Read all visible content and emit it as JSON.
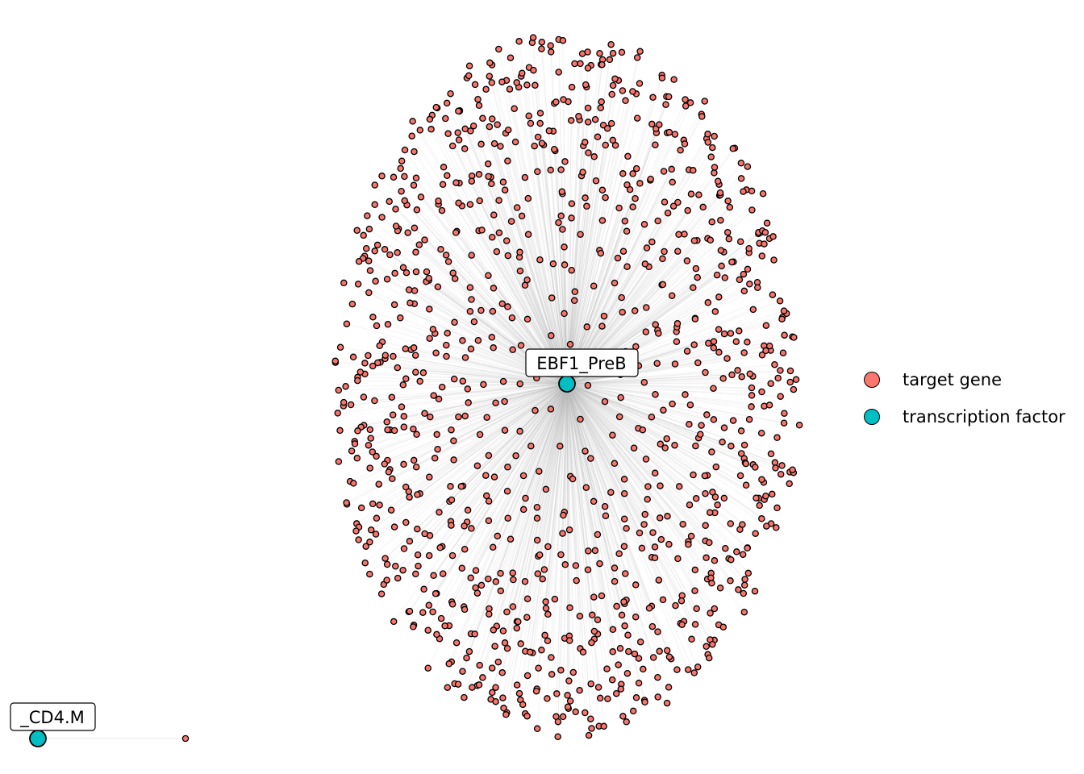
{
  "colors": {
    "target_gene": "#F8766D",
    "transcription_factor": "#00BFC4",
    "edge": "#BDBDBD",
    "node_stroke": "#000000",
    "label_border": "#000000",
    "label_fill": "#FFFFFF"
  },
  "legend": {
    "items": [
      {
        "label": "target gene",
        "color": "#F8766D"
      },
      {
        "label": "transcription factor",
        "color": "#00BFC4"
      }
    ]
  },
  "network": {
    "hubs": [
      {
        "label": "EBF1_PreB",
        "type": "transcription factor",
        "target_count": 1100
      },
      {
        "label": "_CD4.M",
        "type": "transcription factor",
        "target_count": 1
      }
    ]
  }
}
